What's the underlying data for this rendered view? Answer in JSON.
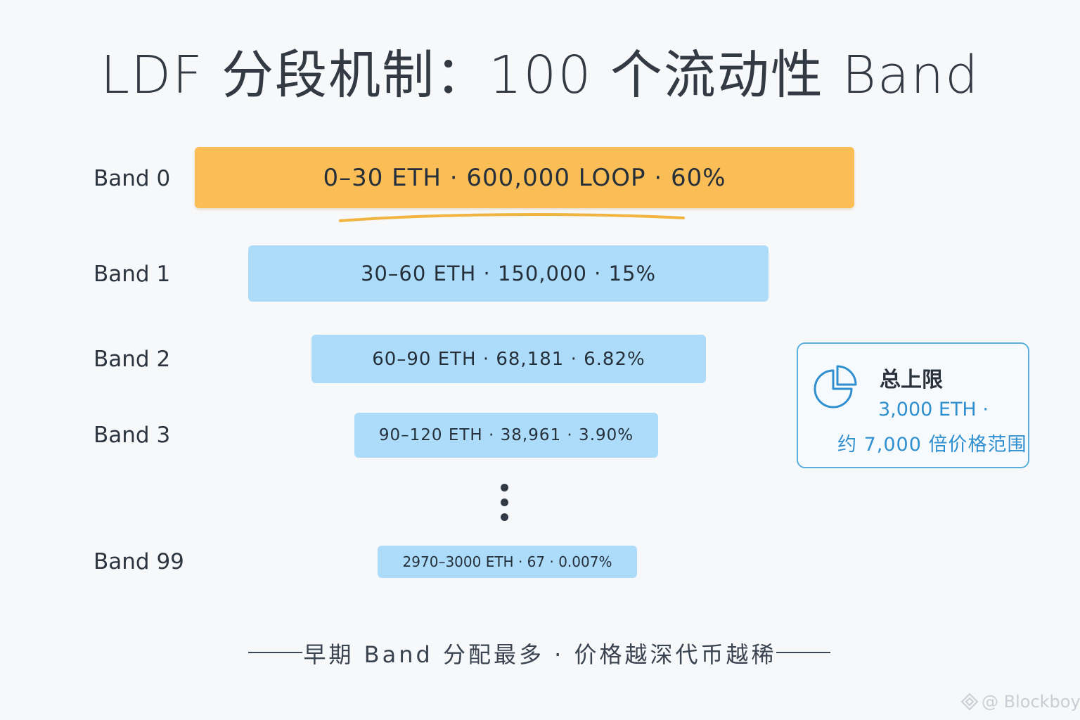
{
  "title": "LDF 分段机制：100 个流动性 Band",
  "bands": [
    {
      "label": "Band 0",
      "text": "0–30 ETH · 600,000 LOOP · 60%",
      "eth_range": [
        0,
        30
      ],
      "tokens": 600000,
      "unit": "LOOP",
      "share_percent": 60
    },
    {
      "label": "Band 1",
      "text": "30–60 ETH · 150,000 · 15%",
      "eth_range": [
        30,
        60
      ],
      "tokens": 150000,
      "share_percent": 15
    },
    {
      "label": "Band 2",
      "text": "60–90 ETH · 68,181 · 6.82%",
      "eth_range": [
        60,
        90
      ],
      "tokens": 68181,
      "share_percent": 6.82
    },
    {
      "label": "Band 3",
      "text": "90–120 ETH · 38,961 · 3.90%",
      "eth_range": [
        90,
        120
      ],
      "tokens": 38961,
      "share_percent": 3.9
    },
    {
      "label": "Band 99",
      "text": "2970–3000 ETH · 67 · 0.007%",
      "eth_range": [
        2970,
        3000
      ],
      "tokens": 67,
      "share_percent": 0.007
    }
  ],
  "info_box": {
    "icon": "pie-chart-icon",
    "title": "总上限",
    "line1": "3,000 ETH ·",
    "line2": "约 7,000 倍价格范围"
  },
  "footer": "早期 Band 分配最多 · 价格越深代币越稀",
  "watermark": "@ Blockboy",
  "colors": {
    "background": "#f6f8fa",
    "band_primary": "#fbbd55",
    "band_secondary": "#acdcfa",
    "accent": "#2f8fcf",
    "underline": "#f2b441"
  }
}
